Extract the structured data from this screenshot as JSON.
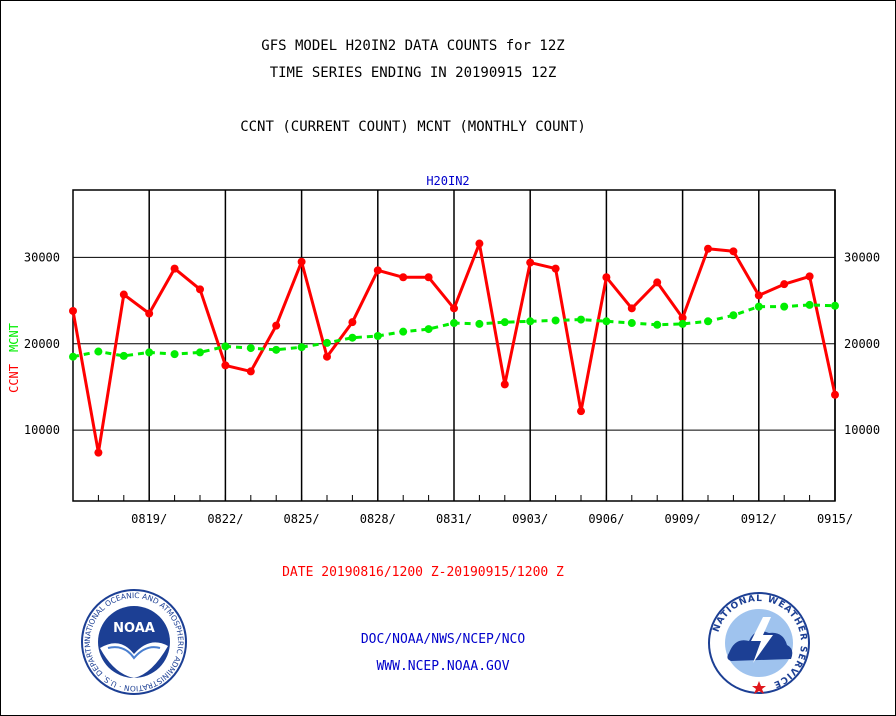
{
  "header": {
    "title_line1": "GFS MODEL H20IN2 DATA COUNTS for 12Z",
    "title_line2": "TIME SERIES ENDING IN 20190915 12Z",
    "subtitle": "CCNT (CURRENT COUNT) MCNT (MONTHLY COUNT)"
  },
  "footer": {
    "org": "DOC/NOAA/NWS/NCEP/NCO",
    "url": "WWW.NCEP.NOAA.GOV"
  },
  "logos": {
    "noaa_text": "NOAA",
    "noaa_ring": "NATIONAL OCEANIC AND ATMOSPHERIC ADMINISTRATION · U.S. DEPARTMENT OF COMMERCE ·",
    "nws_ring": "NATIONAL WEATHER SERVICE"
  },
  "colors": {
    "ccnt": "#ff0000",
    "mcnt": "#00ee00",
    "label_blue": "#0000cc",
    "axis": "#000000"
  },
  "chart_data": {
    "type": "line",
    "title": "H20IN2",
    "ylabel_series1": "CCNT",
    "ylabel_series2": "MCNT",
    "xlabel": "DATE 20190816/1200 Z-20190915/1200 Z",
    "x_dates": [
      "0816",
      "0817",
      "0818",
      "0819",
      "0820",
      "0821",
      "0822",
      "0823",
      "0824",
      "0825",
      "0826",
      "0827",
      "0828",
      "0829",
      "0830",
      "0831",
      "0901",
      "0902",
      "0903",
      "0904",
      "0905",
      "0906",
      "0907",
      "0908",
      "0909",
      "0910",
      "0911",
      "0912",
      "0913",
      "0914",
      "0915"
    ],
    "x_tick_labels": [
      "0819/",
      "0822/",
      "0825/",
      "0828/",
      "0831/",
      "0903/",
      "0906/",
      "0909/",
      "0912/",
      "0915/"
    ],
    "x_tick_dates": [
      "0819",
      "0822",
      "0825",
      "0828",
      "0831",
      "0903",
      "0906",
      "0909",
      "0912",
      "0915"
    ],
    "y_ticks": [
      10000,
      20000,
      30000
    ],
    "ylim": [
      1800,
      37800
    ],
    "grid": true,
    "series": [
      {
        "name": "CCNT",
        "values": [
          23800,
          7400,
          25700,
          23500,
          28700,
          26300,
          17500,
          16800,
          22100,
          29500,
          18500,
          22500,
          28500,
          27700,
          27700,
          24100,
          31600,
          15300,
          29400,
          28700,
          12200,
          27700,
          24100,
          27100,
          23000,
          31000,
          30700,
          25600,
          26900,
          27800,
          14100
        ]
      },
      {
        "name": "MCNT",
        "values": [
          18500,
          19100,
          18600,
          19000,
          18800,
          19000,
          19700,
          19500,
          19300,
          19600,
          20100,
          20700,
          20900,
          21400,
          21700,
          22400,
          22300,
          22500,
          22600,
          22700,
          22800,
          22600,
          22400,
          22200,
          22300,
          22600,
          23300,
          24300,
          24300,
          24500,
          24400
        ]
      }
    ]
  }
}
